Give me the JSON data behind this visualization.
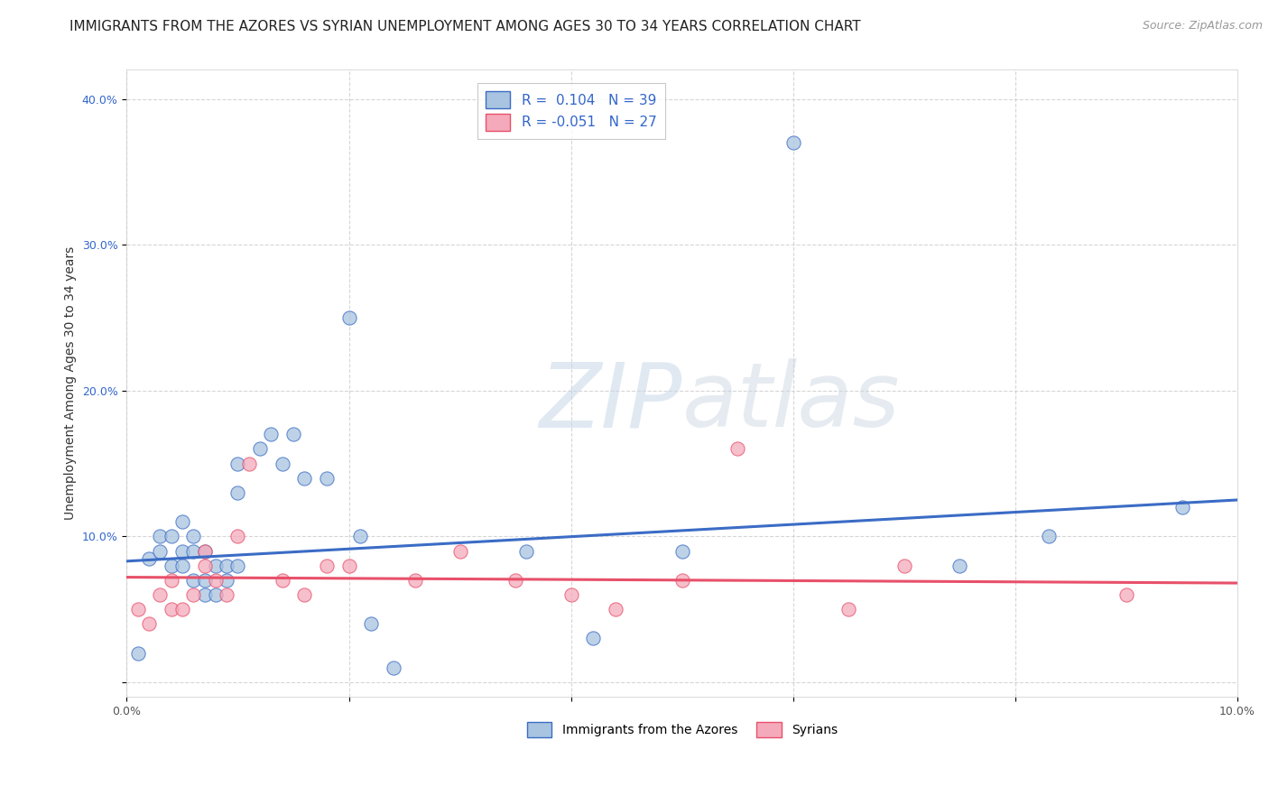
{
  "title": "IMMIGRANTS FROM THE AZORES VS SYRIAN UNEMPLOYMENT AMONG AGES 30 TO 34 YEARS CORRELATION CHART",
  "source": "Source: ZipAtlas.com",
  "ylabel_label": "Unemployment Among Ages 30 to 34 years",
  "xlim": [
    0.0,
    0.1
  ],
  "ylim": [
    -0.01,
    0.42
  ],
  "xticks": [
    0.0,
    0.02,
    0.04,
    0.06,
    0.08,
    0.1
  ],
  "xtick_labels": [
    "0.0%",
    "",
    "",
    "",
    "",
    "10.0%"
  ],
  "yticks": [
    0.0,
    0.1,
    0.2,
    0.3,
    0.4
  ],
  "ytick_labels": [
    "",
    "10.0%",
    "20.0%",
    "30.0%",
    "40.0%"
  ],
  "blue_R": 0.104,
  "blue_N": 39,
  "pink_R": -0.051,
  "pink_N": 27,
  "blue_scatter_x": [
    0.001,
    0.002,
    0.003,
    0.003,
    0.004,
    0.004,
    0.005,
    0.005,
    0.005,
    0.006,
    0.006,
    0.006,
    0.007,
    0.007,
    0.007,
    0.008,
    0.008,
    0.009,
    0.009,
    0.01,
    0.01,
    0.01,
    0.012,
    0.013,
    0.014,
    0.015,
    0.016,
    0.018,
    0.02,
    0.021,
    0.022,
    0.024,
    0.036,
    0.042,
    0.05,
    0.06,
    0.075,
    0.083,
    0.095
  ],
  "blue_scatter_y": [
    0.02,
    0.085,
    0.09,
    0.1,
    0.08,
    0.1,
    0.08,
    0.09,
    0.11,
    0.07,
    0.09,
    0.1,
    0.06,
    0.07,
    0.09,
    0.06,
    0.08,
    0.07,
    0.08,
    0.08,
    0.13,
    0.15,
    0.16,
    0.17,
    0.15,
    0.17,
    0.14,
    0.14,
    0.25,
    0.1,
    0.04,
    0.01,
    0.09,
    0.03,
    0.09,
    0.37,
    0.08,
    0.1,
    0.12
  ],
  "pink_scatter_x": [
    0.001,
    0.002,
    0.003,
    0.004,
    0.004,
    0.005,
    0.006,
    0.007,
    0.007,
    0.008,
    0.009,
    0.01,
    0.011,
    0.014,
    0.016,
    0.018,
    0.02,
    0.026,
    0.03,
    0.035,
    0.04,
    0.044,
    0.05,
    0.055,
    0.065,
    0.07,
    0.09
  ],
  "pink_scatter_y": [
    0.05,
    0.04,
    0.06,
    0.05,
    0.07,
    0.05,
    0.06,
    0.08,
    0.09,
    0.07,
    0.06,
    0.1,
    0.15,
    0.07,
    0.06,
    0.08,
    0.08,
    0.07,
    0.09,
    0.07,
    0.06,
    0.05,
    0.07,
    0.16,
    0.05,
    0.08,
    0.06
  ],
  "blue_line_x": [
    0.0,
    0.1
  ],
  "blue_line_y": [
    0.083,
    0.125
  ],
  "pink_line_x": [
    0.0,
    0.1
  ],
  "pink_line_y": [
    0.072,
    0.068
  ],
  "blue_color": "#A8C4E0",
  "pink_color": "#F4AABB",
  "blue_line_color": "#3B6CC5",
  "pink_line_color": "#E8506A",
  "background_color": "#FFFFFF",
  "grid_color": "#CCCCCC",
  "title_fontsize": 11,
  "source_fontsize": 9,
  "label_fontsize": 10,
  "tick_fontsize": 9,
  "legend_label_blue": "R =  0.104   N = 39",
  "legend_label_pink": "R = -0.051   N = 27"
}
